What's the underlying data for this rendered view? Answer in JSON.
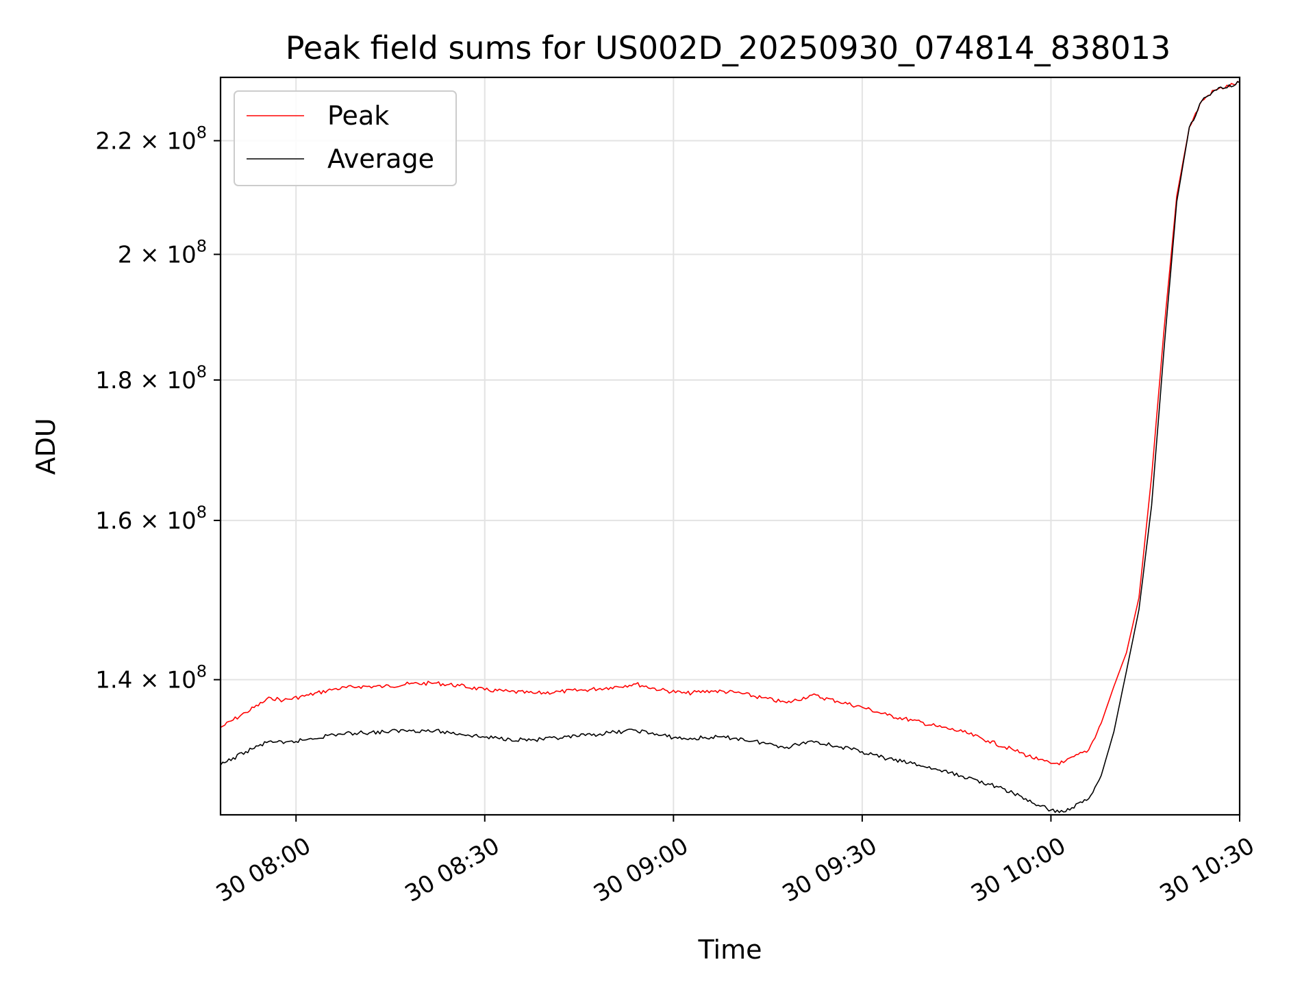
{
  "chart_data": {
    "type": "line",
    "title": "Peak field sums for US002D_20250930_074814_838013",
    "xlabel": "Time",
    "ylabel": "ADU",
    "y_scale": "log",
    "grid": true,
    "legend_position": "top-left",
    "xlim": [
      "2025-09-30 07:48",
      "2025-09-30 10:30"
    ],
    "ylim": [
      125000000,
      232000000
    ],
    "x_ticks": [
      {
        "value": "2025-09-30 08:00",
        "label": "30 08:00"
      },
      {
        "value": "2025-09-30 08:30",
        "label": "30 08:30"
      },
      {
        "value": "2025-09-30 09:00",
        "label": "30 09:00"
      },
      {
        "value": "2025-09-30 09:30",
        "label": "30 09:30"
      },
      {
        "value": "2025-09-30 10:00",
        "label": "30 10:00"
      },
      {
        "value": "2025-09-30 10:30",
        "label": "30 10:30"
      }
    ],
    "y_ticks": [
      {
        "value": 140000000,
        "mantissa": "1.4",
        "base": "10",
        "exponent": "8"
      },
      {
        "value": 160000000,
        "mantissa": "1.6",
        "base": "10",
        "exponent": "8"
      },
      {
        "value": 180000000,
        "mantissa": "1.8",
        "base": "10",
        "exponent": "8"
      },
      {
        "value": 200000000,
        "mantissa": "2",
        "base": "10",
        "exponent": "8"
      },
      {
        "value": 220000000,
        "mantissa": "2.2",
        "base": "10",
        "exponent": "8"
      }
    ],
    "series": [
      {
        "name": "Peak",
        "color": "#ff0000",
        "points": [
          [
            "2025-09-30 07:48",
            134500000
          ],
          [
            "2025-09-30 07:52",
            136200000
          ],
          [
            "2025-09-30 07:56",
            137900000
          ],
          [
            "2025-09-30 07:58",
            137600000
          ],
          [
            "2025-09-30 08:02",
            138200000
          ],
          [
            "2025-09-30 08:06",
            138900000
          ],
          [
            "2025-09-30 08:10",
            139200000
          ],
          [
            "2025-09-30 08:14",
            139200000
          ],
          [
            "2025-09-30 08:18",
            139500000
          ],
          [
            "2025-09-30 08:22",
            139600000
          ],
          [
            "2025-09-30 08:26",
            139300000
          ],
          [
            "2025-09-30 08:30",
            138800000
          ],
          [
            "2025-09-30 08:34",
            138600000
          ],
          [
            "2025-09-30 08:38",
            138400000
          ],
          [
            "2025-09-30 08:42",
            138600000
          ],
          [
            "2025-09-30 08:46",
            138800000
          ],
          [
            "2025-09-30 08:50",
            139100000
          ],
          [
            "2025-09-30 08:54",
            139500000
          ],
          [
            "2025-09-30 08:58",
            138800000
          ],
          [
            "2025-09-30 09:02",
            138400000
          ],
          [
            "2025-09-30 09:06",
            138700000
          ],
          [
            "2025-09-30 09:10",
            138500000
          ],
          [
            "2025-09-30 09:14",
            137900000
          ],
          [
            "2025-09-30 09:18",
            137300000
          ],
          [
            "2025-09-30 09:22",
            138200000
          ],
          [
            "2025-09-30 09:26",
            137500000
          ],
          [
            "2025-09-30 09:30",
            136800000
          ],
          [
            "2025-09-30 09:34",
            135900000
          ],
          [
            "2025-09-30 09:38",
            135300000
          ],
          [
            "2025-09-30 09:42",
            134600000
          ],
          [
            "2025-09-30 09:46",
            134000000
          ],
          [
            "2025-09-30 09:50",
            133000000
          ],
          [
            "2025-09-30 09:54",
            132000000
          ],
          [
            "2025-09-30 09:58",
            130900000
          ],
          [
            "2025-09-30 10:00",
            130500000
          ],
          [
            "2025-09-30 10:02",
            130600000
          ],
          [
            "2025-09-30 10:06",
            132000000
          ],
          [
            "2025-09-30 10:08",
            135000000
          ],
          [
            "2025-09-30 10:10",
            139200000
          ],
          [
            "2025-09-30 10:12",
            143200000
          ],
          [
            "2025-09-30 10:14",
            150000000
          ],
          [
            "2025-09-30 10:16",
            166000000
          ],
          [
            "2025-09-30 10:18",
            188000000
          ],
          [
            "2025-09-30 10:20",
            210000000
          ],
          [
            "2025-09-30 10:22",
            222500000
          ],
          [
            "2025-09-30 10:24",
            227500000
          ],
          [
            "2025-09-30 10:26",
            229500000
          ],
          [
            "2025-09-30 10:30",
            231000000
          ]
        ]
      },
      {
        "name": "Average",
        "color": "#000000",
        "points": [
          [
            "2025-09-30 07:48",
            130300000
          ],
          [
            "2025-09-30 07:52",
            131800000
          ],
          [
            "2025-09-30 07:56",
            133000000
          ],
          [
            "2025-09-30 07:58",
            132700000
          ],
          [
            "2025-09-30 08:02",
            133200000
          ],
          [
            "2025-09-30 08:06",
            133700000
          ],
          [
            "2025-09-30 08:10",
            133900000
          ],
          [
            "2025-09-30 08:14",
            134000000
          ],
          [
            "2025-09-30 08:18",
            134200000
          ],
          [
            "2025-09-30 08:22",
            134100000
          ],
          [
            "2025-09-30 08:26",
            133800000
          ],
          [
            "2025-09-30 08:30",
            133400000
          ],
          [
            "2025-09-30 08:34",
            133200000
          ],
          [
            "2025-09-30 08:38",
            133100000
          ],
          [
            "2025-09-30 08:42",
            133300000
          ],
          [
            "2025-09-30 08:46",
            133600000
          ],
          [
            "2025-09-30 08:50",
            133900000
          ],
          [
            "2025-09-30 08:54",
            134200000
          ],
          [
            "2025-09-30 08:58",
            133600000
          ],
          [
            "2025-09-30 09:02",
            133200000
          ],
          [
            "2025-09-30 09:06",
            133400000
          ],
          [
            "2025-09-30 09:10",
            133300000
          ],
          [
            "2025-09-30 09:14",
            132800000
          ],
          [
            "2025-09-30 09:18",
            132300000
          ],
          [
            "2025-09-30 09:22",
            133000000
          ],
          [
            "2025-09-30 09:26",
            132400000
          ],
          [
            "2025-09-30 09:30",
            131800000
          ],
          [
            "2025-09-30 09:34",
            131000000
          ],
          [
            "2025-09-30 09:38",
            130500000
          ],
          [
            "2025-09-30 09:42",
            129800000
          ],
          [
            "2025-09-30 09:46",
            129100000
          ],
          [
            "2025-09-30 09:50",
            128300000
          ],
          [
            "2025-09-30 09:54",
            127300000
          ],
          [
            "2025-09-30 09:58",
            126000000
          ],
          [
            "2025-09-30 10:00",
            125500000
          ],
          [
            "2025-09-30 10:02",
            125300000
          ],
          [
            "2025-09-30 10:06",
            126700000
          ],
          [
            "2025-09-30 10:08",
            129200000
          ],
          [
            "2025-09-30 10:10",
            134000000
          ],
          [
            "2025-09-30 10:12",
            141000000
          ],
          [
            "2025-09-30 10:14",
            148500000
          ],
          [
            "2025-09-30 10:16",
            162000000
          ],
          [
            "2025-09-30 10:18",
            185000000
          ],
          [
            "2025-09-30 10:20",
            209000000
          ],
          [
            "2025-09-30 10:22",
            222500000
          ],
          [
            "2025-09-30 10:24",
            227500000
          ],
          [
            "2025-09-30 10:26",
            229500000
          ],
          [
            "2025-09-30 10:30",
            231000000
          ]
        ]
      }
    ]
  }
}
